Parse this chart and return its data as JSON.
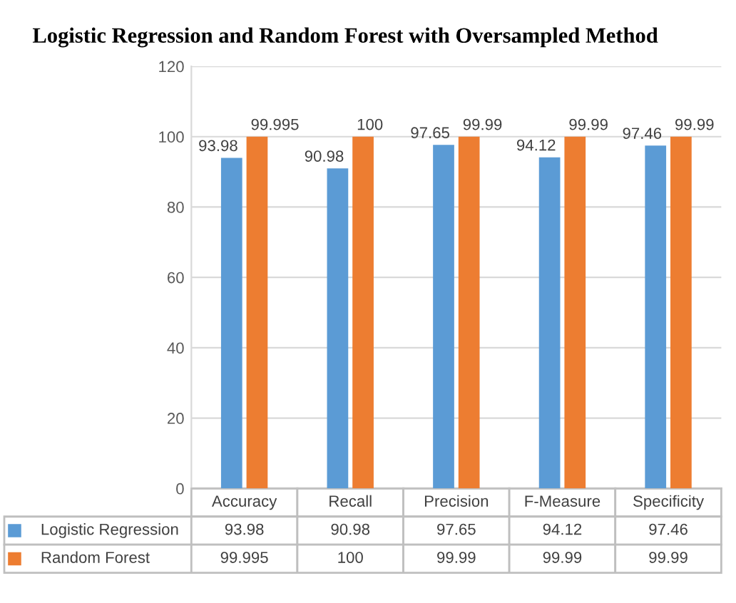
{
  "chart_data": {
    "type": "bar",
    "title": "Logistic Regression and Random Forest with Oversampled Method",
    "categories": [
      "Accuracy",
      "Recall",
      "Precision",
      "F-Measure",
      "Specificity"
    ],
    "series": [
      {
        "name": "Logistic Regression",
        "color": "#5b9bd5",
        "values": [
          93.98,
          90.98,
          97.65,
          94.12,
          97.46
        ],
        "value_labels": [
          "93.98",
          "90.98",
          "97.65",
          "94.12",
          "97.46"
        ]
      },
      {
        "name": "Random Forest",
        "color": "#ed7d31",
        "values": [
          99.995,
          100,
          99.99,
          99.99,
          99.99
        ],
        "value_labels": [
          "99.995",
          "100",
          "99.99",
          "99.99",
          "99.99"
        ]
      }
    ],
    "legend": "bottom",
    "annotations": [
      "93.98",
      "90.98",
      "97.65",
      "94.12",
      "97.46",
      "99.995",
      "100",
      "99.99",
      "99.99",
      "99.99"
    ],
    "ylim": [
      0,
      120
    ],
    "yticks": [
      0,
      20,
      40,
      60,
      80,
      100,
      120
    ],
    "grid": "y",
    "data_labels": true
  }
}
